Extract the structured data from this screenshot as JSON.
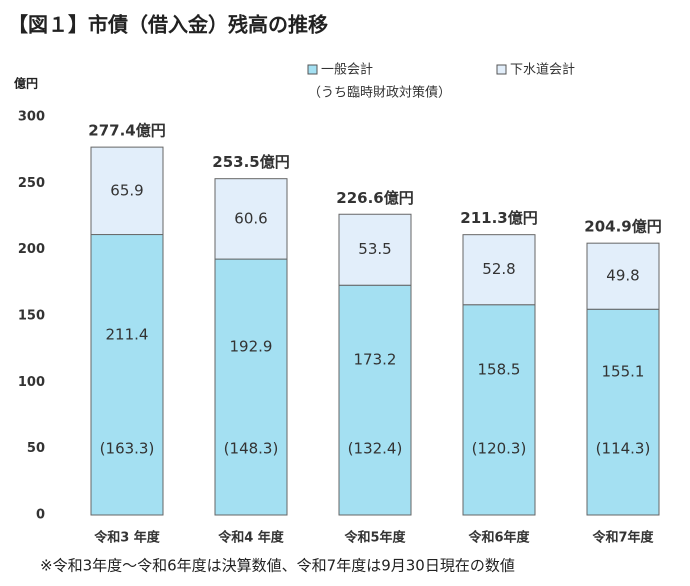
{
  "chart_data": {
    "type": "stacked_bar",
    "title": "【図１】市債（借入金）残高の推移",
    "y_unit": "億円",
    "categories": [
      "令和3 年度",
      "令和4 年度",
      "令和5年度",
      "令和6年度",
      "令和7年度"
    ],
    "series": [
      {
        "name": "一般会計",
        "color": "#a4e0f2",
        "values": [
          211.4,
          192.9,
          173.2,
          158.5,
          155.1
        ]
      },
      {
        "name": "下水道会計",
        "color": "#e2eefa",
        "values": [
          65.9,
          60.6,
          53.5,
          52.8,
          49.8
        ]
      }
    ],
    "sub_series": {
      "name": "（うち臨時財政対策債）",
      "values": [
        163.3,
        148.3,
        132.4,
        120.3,
        114.3
      ],
      "value_labels": [
        "(163.3)",
        "(148.3)",
        "(132.4)",
        "(120.3)",
        "(114.3)"
      ]
    },
    "totals": [
      277.4,
      253.5,
      226.6,
      211.3,
      204.9
    ],
    "total_labels": [
      "277.4億円",
      "253.5億円",
      "226.6億円",
      "211.3億円",
      "204.9億円"
    ],
    "ylim": [
      0,
      300
    ],
    "yticks": [
      0,
      50,
      100,
      150,
      200,
      250,
      300
    ],
    "footnote": "※令和3年度～令和6年度は決算数値、令和7年度は9月30日現在の数値"
  }
}
